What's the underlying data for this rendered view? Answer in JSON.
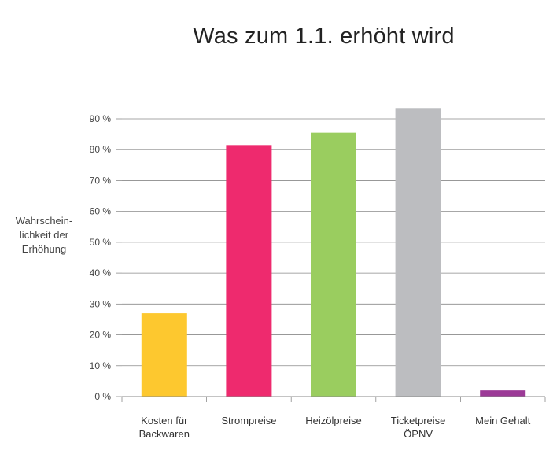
{
  "chart_data": {
    "type": "bar",
    "title": "Was zum 1.1. erhöht wird",
    "ylabel_lines": [
      "Wahrschein-",
      "lichkeit der",
      "Erhöhung"
    ],
    "xlabel": "",
    "categories": [
      [
        "Kosten für",
        "Backwaren"
      ],
      [
        "Strompreise"
      ],
      [
        "Heizölpreise"
      ],
      [
        "Ticketpreise",
        "ÖPNV"
      ],
      [
        "Mein Gehalt"
      ]
    ],
    "values": [
      27,
      81.5,
      85.5,
      93.5,
      2
    ],
    "colors": [
      "#FDC82F",
      "#EE2A6E",
      "#9ACD5F",
      "#BCBDC0",
      "#9C3A97"
    ],
    "ylim": [
      0,
      90
    ],
    "yticks": [
      0,
      10,
      20,
      30,
      40,
      50,
      60,
      70,
      80,
      90
    ],
    "ytick_labels": [
      "0 %",
      "10 %",
      "20 %",
      "30 %",
      "40 %",
      "50 %",
      "60 %",
      "70 %",
      "80 %",
      "90 %"
    ],
    "grid": true,
    "legend": "none"
  }
}
